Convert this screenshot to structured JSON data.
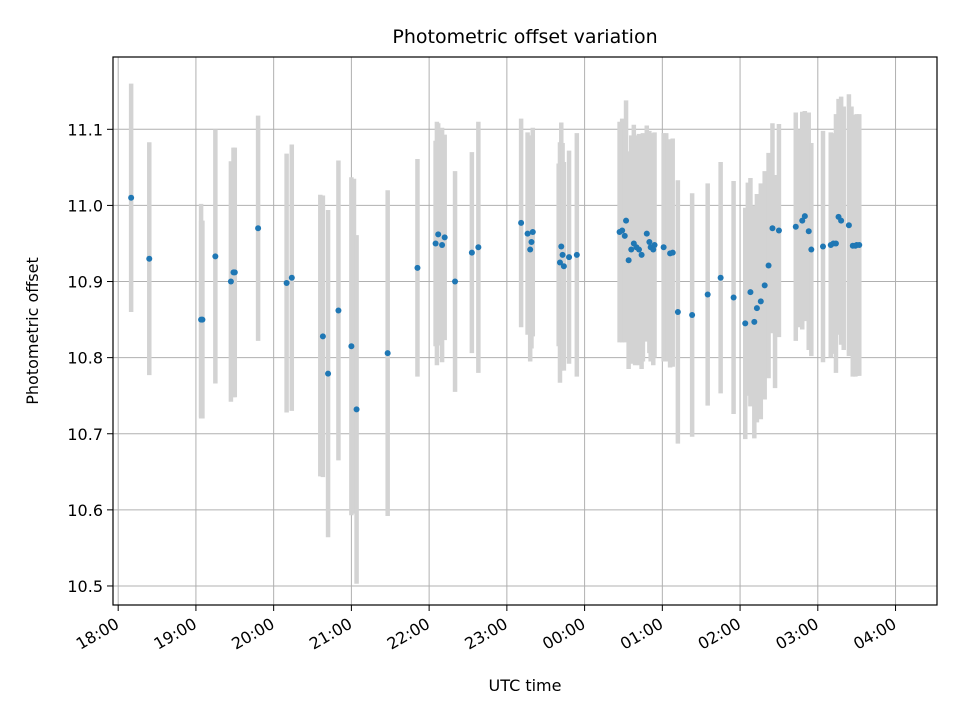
{
  "chart_data": {
    "type": "scatter",
    "title": "Photometric offset variation",
    "xlabel": "UTC time",
    "ylabel": "Photometric offset",
    "x_tick_labels": [
      "18:00",
      "19:00",
      "20:00",
      "21:00",
      "22:00",
      "23:00",
      "00:00",
      "01:00",
      "02:00",
      "03:00",
      "04:00"
    ],
    "y_tick_labels": [
      "10.5",
      "10.6",
      "10.7",
      "10.8",
      "10.9",
      "11.0",
      "11.1"
    ],
    "grid": true,
    "legend": "none",
    "colors": {
      "point": "#1f77b4",
      "errorbar": "#d3d3d3",
      "grid": "#b0b0b0",
      "axis": "#000000"
    },
    "series": [
      {
        "x_time": [
          "18:10",
          "18:24",
          "19:04",
          "19:05",
          "19:15",
          "19:27",
          "19:29",
          "19:30",
          "19:48",
          "20:10",
          "20:14",
          "20:38",
          "20:42",
          "20:50",
          "21:00",
          "21:04",
          "21:28",
          "21:51",
          "22:05",
          "22:07",
          "22:10",
          "22:12",
          "22:20",
          "22:33",
          "22:38",
          "23:11",
          "23:16",
          "23:18",
          "23:19",
          "23:20",
          "23:41",
          "23:42",
          "23:43",
          "23:44",
          "23:48",
          "23:54",
          "00:27",
          "00:29",
          "00:31",
          "00:32",
          "00:34",
          "00:36",
          "00:38",
          "00:40",
          "00:42",
          "00:44",
          "00:48",
          "00:50",
          "00:51",
          "00:53",
          "00:54",
          "01:01",
          "01:06",
          "01:08",
          "01:12",
          "01:23",
          "01:35",
          "01:45",
          "01:55",
          "02:04",
          "02:08",
          "02:11",
          "02:13",
          "02:16",
          "02:19",
          "02:22",
          "02:25",
          "02:30",
          "02:43",
          "02:48",
          "02:50",
          "02:53",
          "02:55",
          "03:04",
          "03:10",
          "03:12",
          "03:14",
          "03:16",
          "03:18",
          "03:24",
          "03:27",
          "03:29",
          "03:30",
          "03:32"
        ],
        "y": [
          11.01,
          10.93,
          10.85,
          10.85,
          10.933,
          10.9,
          10.912,
          10.912,
          10.97,
          10.898,
          10.905,
          10.828,
          10.779,
          10.862,
          10.815,
          10.732,
          10.806,
          10.918,
          10.95,
          10.962,
          10.948,
          10.958,
          10.9,
          10.938,
          10.945,
          10.977,
          10.963,
          10.942,
          10.952,
          10.965,
          10.925,
          10.946,
          10.935,
          10.92,
          10.932,
          10.935,
          10.965,
          10.967,
          10.96,
          10.98,
          10.928,
          10.942,
          10.95,
          10.945,
          10.942,
          10.935,
          10.963,
          10.952,
          10.945,
          10.942,
          10.948,
          10.945,
          10.937,
          10.938,
          10.86,
          10.856,
          10.883,
          10.905,
          10.879,
          10.845,
          10.886,
          10.847,
          10.865,
          10.874,
          10.895,
          10.921,
          10.97,
          10.967,
          10.972,
          10.98,
          10.986,
          10.966,
          10.942,
          10.946,
          10.948,
          10.95,
          10.95,
          10.985,
          10.98,
          10.974,
          10.947,
          10.947,
          10.948,
          10.948
        ],
        "yerr": [
          0.15,
          0.153,
          0.13,
          0.13,
          0.167,
          0.158,
          0.164,
          0.164,
          0.148,
          0.17,
          0.175,
          0.185,
          0.215,
          0.197,
          0.222,
          0.229,
          0.214,
          0.143,
          0.135,
          0.146,
          0.154,
          0.135,
          0.145,
          0.132,
          0.165,
          0.137,
          0.133,
          0.147,
          0.14,
          0.137,
          0.158,
          0.163,
          0.147,
          0.137,
          0.14,
          0.16,
          0.145,
          0.147,
          0.14,
          0.158,
          0.143,
          0.15,
          0.156,
          0.147,
          0.152,
          0.15,
          0.142,
          0.146,
          0.15,
          0.152,
          0.148,
          0.15,
          0.15,
          0.15,
          0.173,
          0.16,
          0.146,
          0.152,
          0.153,
          0.152,
          0.15,
          0.153,
          0.15,
          0.155,
          0.15,
          0.148,
          0.138,
          0.14,
          0.15,
          0.143,
          0.138,
          0.156,
          0.14,
          0.152,
          0.148,
          0.145,
          0.17,
          0.155,
          0.163,
          0.172,
          0.172,
          0.172,
          0.172,
          0.172
        ]
      }
    ],
    "ylim": [
      10.475,
      11.195
    ],
    "x_range_minutes_from_1800": [
      -4,
      632
    ],
    "extra_errorbars": [
      {
        "x_time": "19:04",
        "y": 10.862,
        "yerr": 0.14
      },
      {
        "x_time": "20:36",
        "y": 10.829,
        "yerr": 0.185
      },
      {
        "x_time": "21:02",
        "y": 10.815,
        "yerr": 0.22
      },
      {
        "x_time": "22:06",
        "y": 10.95,
        "yerr": 0.16
      },
      {
        "x_time": "23:40",
        "y": 10.935,
        "yerr": 0.12
      },
      {
        "x_time": "00:39",
        "y": 10.94,
        "yerr": 0.15
      },
      {
        "x_time": "00:45",
        "y": 10.945,
        "yerr": 0.15
      },
      {
        "x_time": "01:03",
        "y": 10.945,
        "yerr": 0.15
      },
      {
        "x_time": "02:06",
        "y": 10.89,
        "yerr": 0.14
      },
      {
        "x_time": "02:27",
        "y": 10.9,
        "yerr": 0.14
      },
      {
        "x_time": "02:46",
        "y": 10.97,
        "yerr": 0.13
      },
      {
        "x_time": "03:20",
        "y": 10.97,
        "yerr": 0.16
      },
      {
        "x_time": "03:26",
        "y": 10.97,
        "yerr": 0.16
      }
    ]
  }
}
